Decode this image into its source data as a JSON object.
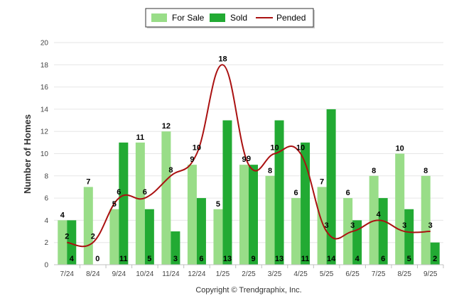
{
  "chart_data": {
    "type": "bar",
    "categories": [
      "7/24",
      "8/24",
      "9/24",
      "10/24",
      "11/24",
      "12/24",
      "1/25",
      "2/25",
      "3/25",
      "4/25",
      "5/25",
      "6/25",
      "7/25",
      "8/25",
      "9/25"
    ],
    "series": [
      {
        "name": "For Sale",
        "type": "bar",
        "color": "#99dd88",
        "values": [
          4,
          7,
          5,
          11,
          12,
          9,
          5,
          9,
          8,
          6,
          7,
          6,
          8,
          10,
          8
        ]
      },
      {
        "name": "Sold",
        "type": "bar",
        "color": "#22aa33",
        "values": [
          4,
          0,
          11,
          5,
          3,
          6,
          13,
          9,
          13,
          11,
          14,
          4,
          6,
          5,
          2
        ]
      },
      {
        "name": "Pended",
        "type": "line",
        "color": "#aa1111",
        "values": [
          2,
          2,
          6,
          6,
          8,
          10,
          18,
          9,
          10,
          10,
          3,
          3,
          4,
          3,
          3
        ]
      }
    ],
    "ylabel": "Number of Homes",
    "ylim": [
      0,
      20
    ],
    "yticks": [
      0,
      2,
      4,
      6,
      8,
      10,
      12,
      14,
      16,
      18,
      20
    ],
    "grid": true,
    "legend": "top-center"
  },
  "footer": "Copyright © Trendgraphix, Inc."
}
